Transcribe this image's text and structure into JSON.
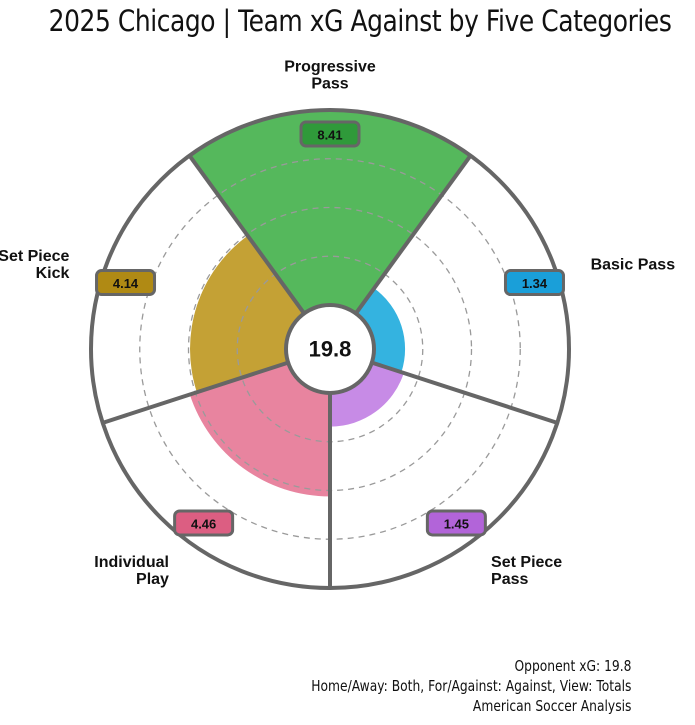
{
  "title": "2025 Chicago | Team xG Against by Five Categories",
  "footer": {
    "line1": "Opponent xG: 19.8",
    "line2": "Home/Away: Both, For/Against: Against, View: Totals",
    "line3": "American Soccer Analysis"
  },
  "chart_data": {
    "type": "polar-bar",
    "title": "2025 Chicago | Team xG Against by Five Categories",
    "center_value": "19.8",
    "rmax": 8.41,
    "categories": [
      {
        "name": "Progressive Pass",
        "label_lines": [
          "Progressive",
          "Pass"
        ],
        "value": 8.41,
        "value_label": "8.41",
        "color": "#55b85c"
      },
      {
        "name": "Basic Pass",
        "label_lines": [
          "Basic Pass"
        ],
        "value": 1.34,
        "value_label": "1.34",
        "color": "#34b3e0"
      },
      {
        "name": "Set Piece Pass",
        "label_lines": [
          "Set Piece",
          "Pass"
        ],
        "value": 1.45,
        "value_label": "1.45",
        "color": "#c78be6"
      },
      {
        "name": "Individual Play",
        "label_lines": [
          "Individual",
          "Play"
        ],
        "value": 4.46,
        "value_label": "4.46",
        "color": "#e8849f"
      },
      {
        "name": "Set Piece Kick",
        "label_lines": [
          "Set Piece",
          "Kick"
        ],
        "value": 4.14,
        "value_label": "4.14",
        "color": "#c4a135"
      }
    ],
    "value_box_colors": [
      "#2f9a3a",
      "#1a9fd9",
      "#b264d9",
      "#dc5e82",
      "#b08a14"
    ],
    "grid": true
  }
}
